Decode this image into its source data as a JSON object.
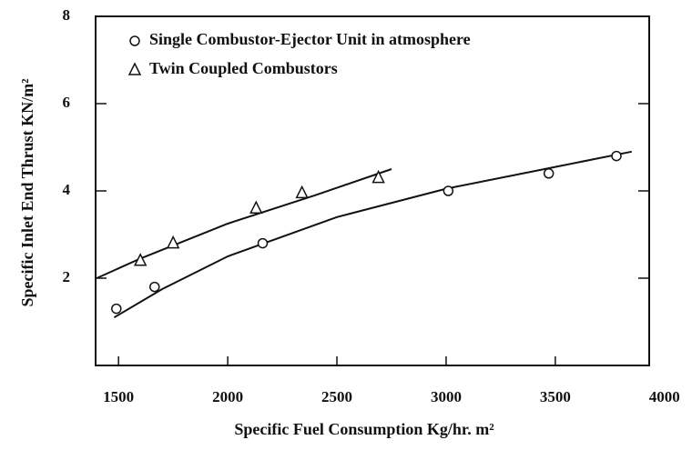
{
  "chart_data": {
    "type": "scatter",
    "xlabel": "Specific Fuel Consumption Kg/hr. m²",
    "ylabel": "Specific Inlet End Thrust KN/m²",
    "xlim": [
      1395,
      3930
    ],
    "ylim": [
      0,
      8
    ],
    "xticks": [
      1500,
      2000,
      2500,
      3000,
      3500,
      4000
    ],
    "yticks": [
      2,
      4,
      6,
      8
    ],
    "series": [
      {
        "name": "Single Combustor-Ejector Unit in atmosphere",
        "marker": "circle",
        "color": "#111111",
        "x": [
          1490,
          1665,
          2160,
          3010,
          3470,
          3780
        ],
        "values": [
          1.3,
          1.8,
          2.8,
          4.0,
          4.4,
          4.8
        ],
        "fit_x": [
          1480,
          1700,
          2000,
          2500,
          3000,
          3500,
          3850
        ],
        "fit_values": [
          1.1,
          1.75,
          2.5,
          3.4,
          4.05,
          4.55,
          4.9
        ]
      },
      {
        "name": "Twin Coupled Combustors",
        "marker": "triangle",
        "color": "#111111",
        "x": [
          1600,
          1750,
          2130,
          2340,
          2690
        ],
        "values": [
          2.4,
          2.8,
          3.6,
          3.95,
          4.3
        ],
        "fit_x": [
          1400,
          1600,
          2000,
          2400,
          2750
        ],
        "fit_values": [
          2.0,
          2.45,
          3.25,
          3.9,
          4.5
        ]
      }
    ]
  }
}
